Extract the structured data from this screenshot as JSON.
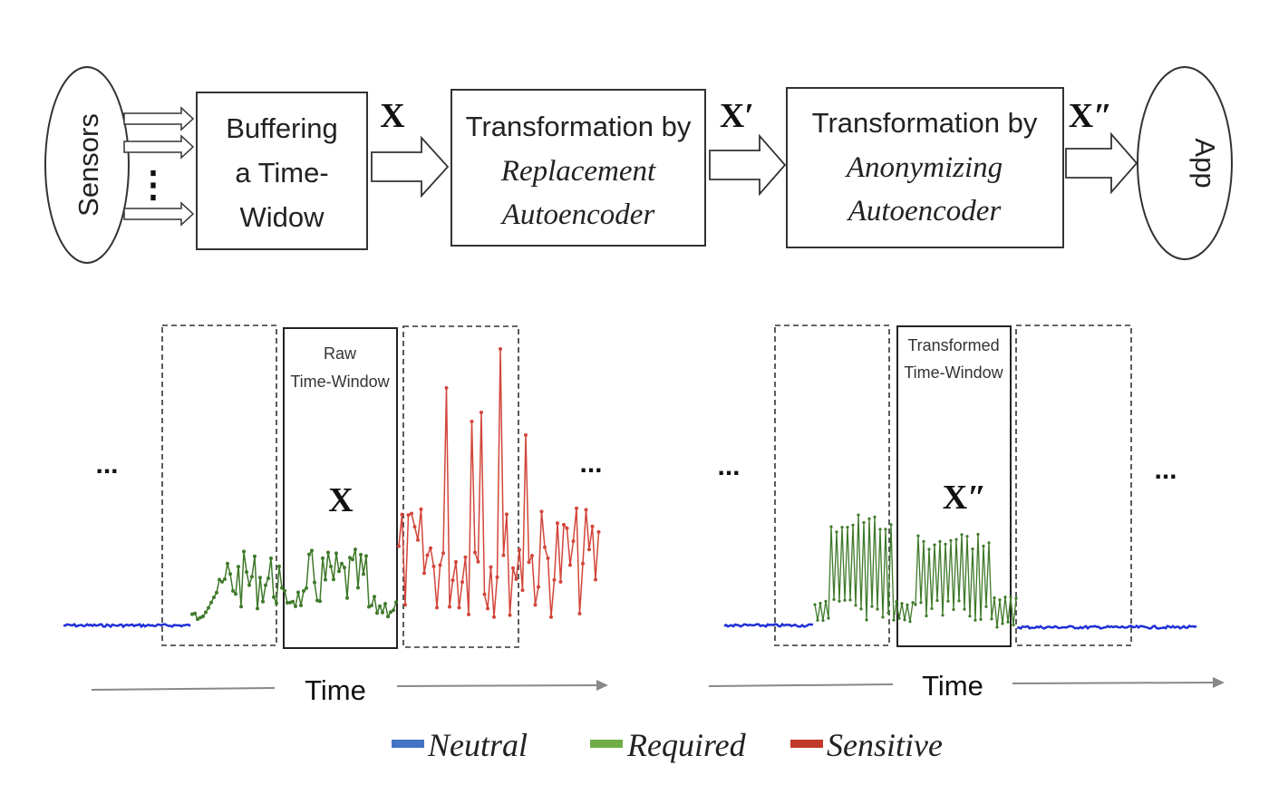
{
  "pipeline": {
    "sensors_label": "Sensors",
    "buffer_lines": [
      "Buffering",
      "a Time-",
      "Widow"
    ],
    "replacement_lines": [
      "Transformation by",
      "Replacement",
      "Autoencoder"
    ],
    "anonymizing_lines": [
      "Transformation by",
      "Anonymizing",
      "Autoencoder"
    ],
    "app_label": "App",
    "symbol_x": "X",
    "symbol_x_prime": "X′",
    "symbol_x_double_prime": "X″",
    "vertical_dots": "⋮"
  },
  "left_plot": {
    "window_label_lines": [
      "Raw",
      "Time-Window"
    ],
    "window_symbol": "X",
    "ellipsis_left": "...",
    "ellipsis_right": "...",
    "time_label": "Time"
  },
  "right_plot": {
    "window_label_lines": [
      "Transformed",
      "Time-Window"
    ],
    "window_symbol": "X″",
    "ellipsis_left": "...",
    "ellipsis_right": "...",
    "time_label": "Time"
  },
  "legend": {
    "items": [
      {
        "label": "Neutral",
        "color": "#4472c4"
      },
      {
        "label": "Required",
        "color": "#70ad47"
      },
      {
        "label": "Sensitive",
        "color": "#c0392b"
      }
    ]
  },
  "colors": {
    "neutral_line": "#1f2fd6",
    "required_line": "#3f7a2a",
    "sensitive_line": "#d2463a"
  }
}
